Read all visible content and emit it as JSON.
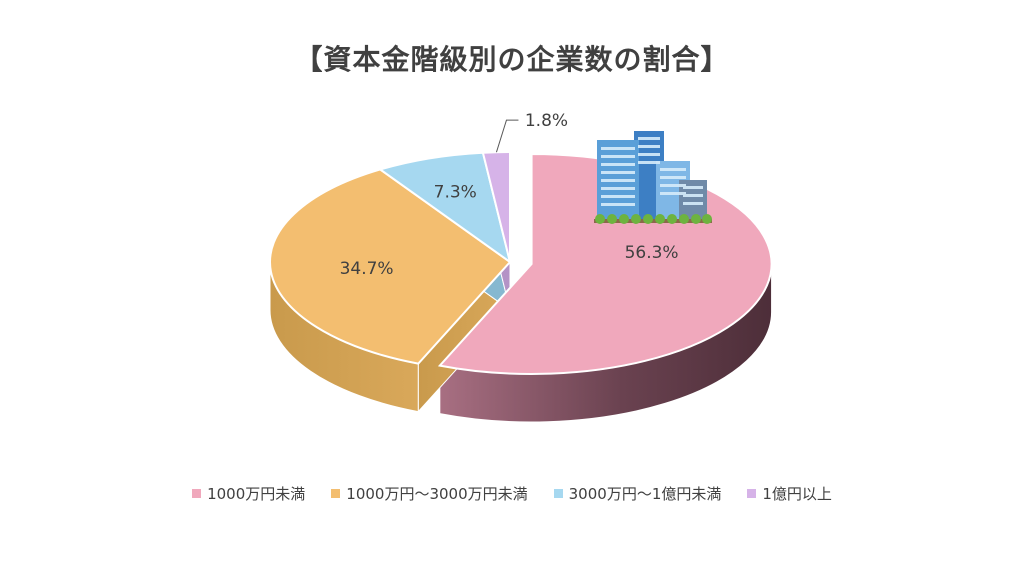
{
  "chart_data": {
    "type": "pie",
    "title": "【資本金階級別の企業数の割合】",
    "categories": [
      "1000万円未満",
      "1000万円～3000万円未満",
      "3000万円～1億円未満",
      "1億円以上"
    ],
    "values": [
      56.3,
      34.7,
      7.3,
      1.8
    ],
    "value_labels": [
      "56.3%",
      "34.7%",
      "7.3%",
      "1.8%"
    ],
    "colors": [
      "#F0A8BC",
      "#F3BE70",
      "#A6D8F0",
      "#D6B3E8"
    ],
    "legend_position": "bottom",
    "exploded_slice": "1000万円未満",
    "style": "3d"
  }
}
